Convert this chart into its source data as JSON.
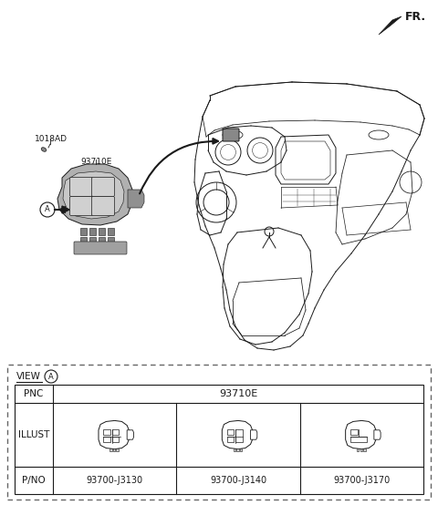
{
  "fr_label": "FR.",
  "label_1018AD": "1018AD",
  "label_93710E": "93710E",
  "label_A": "A",
  "view_label": "VIEW",
  "view_circle_label": "A",
  "table_pnc_label": "PNC",
  "table_pnc_value": "93710E",
  "table_illust_label": "ILLUST",
  "table_pno_label": "P/NO",
  "table_pno_values": [
    "93700-J3130",
    "93700-J3140",
    "93700-J3170"
  ],
  "bg_color": "#ffffff",
  "lc": "#1a1a1a",
  "gray_switch": "#b0b0b0",
  "gray_switch2": "#c8c8c8",
  "dash_color": "#555555"
}
